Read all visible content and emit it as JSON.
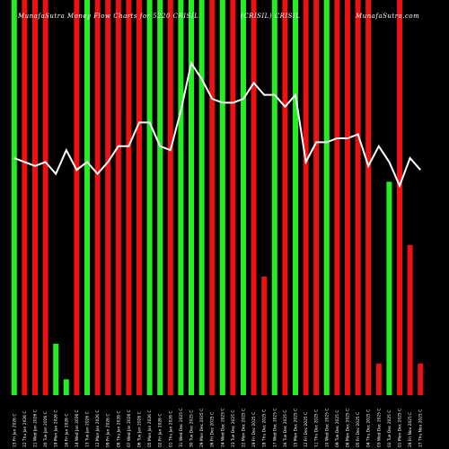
{
  "header": {
    "left": "MunafaSutra Money Flow Charts for 5220 CRISIL",
    "center": "(CRISIL) CRISIL",
    "right": "MunafaSutra.com"
  },
  "chart_data": {
    "type": "bar",
    "title": "MunafaSutra Money Flow Charts for 5220 CRISIL",
    "bars_normalized_to": "tallest = 1.0",
    "ylim": [
      0,
      1
    ],
    "line_series_scale": "price line, top of plot = 1.0",
    "categories": [
      "23 Fri Jan 2026 C",
      "22 Thu Jan 2026 C",
      "21 Wed Jan 2026 C",
      "20 Tue Jan 2026 C",
      "19 Mon Jan 2026 C",
      "16 Fri Jan 2026 C",
      "14 Wed Jan 2026 C",
      "13 Tue Jan 2026 C",
      "12 Mon Jan 2026 C",
      "09 Fri Jan 2026 C",
      "08 Thu Jan 2026 C",
      "07 Wed Jan 2026 C",
      "06 Tue Jan 2026 C",
      "05 Mon Jan 2026 C",
      "02 Fri Jan 2026 C",
      "01 Thu Jan 2026 C",
      "31 Wed Dec 2025 C",
      "30 Tue Dec 2025 C",
      "29 Mon Dec 2025 C",
      "26 Fri Dec 2025 C",
      "24 Wed Dec 2025 C",
      "23 Tue Dec 2025 C",
      "22 Mon Dec 2025 C",
      "19 Fri Dec 2025 C",
      "18 Thu Dec 2025 C",
      "17 Wed Dec 2025 C",
      "16 Tue Dec 2025 C",
      "15 Mon Dec 2025 C",
      "12 Fri Dec 2025 C",
      "11 Thu Dec 2025 C",
      "10 Wed Dec 2025 C",
      "09 Tue Dec 2025 C",
      "08 Mon Dec 2025 C",
      "05 Fri Dec 2025 C",
      "04 Thu Dec 2025 C",
      "03 Wed Dec 2025 C",
      "02 Tue Dec 2025 C",
      "01 Mon Dec 2025 C",
      "28 Fri Nov 2025 C",
      "27 Thu Nov 2025 C"
    ],
    "bars": [
      {
        "value": 1.0,
        "color": "green"
      },
      {
        "value": 1.0,
        "color": "red"
      },
      {
        "value": 1.0,
        "color": "red"
      },
      {
        "value": 1.0,
        "color": "red"
      },
      {
        "value": 0.13,
        "color": "green"
      },
      {
        "value": 0.04,
        "color": "green"
      },
      {
        "value": 1.0,
        "color": "red"
      },
      {
        "value": 1.0,
        "color": "green"
      },
      {
        "value": 1.0,
        "color": "red"
      },
      {
        "value": 1.0,
        "color": "red"
      },
      {
        "value": 1.0,
        "color": "red"
      },
      {
        "value": 1.0,
        "color": "red"
      },
      {
        "value": 1.0,
        "color": "red"
      },
      {
        "value": 1.0,
        "color": "green"
      },
      {
        "value": 1.0,
        "color": "green"
      },
      {
        "value": 1.0,
        "color": "red"
      },
      {
        "value": 1.0,
        "color": "green"
      },
      {
        "value": 1.0,
        "color": "green"
      },
      {
        "value": 1.0,
        "color": "green"
      },
      {
        "value": 1.0,
        "color": "red"
      },
      {
        "value": 1.0,
        "color": "green"
      },
      {
        "value": 1.0,
        "color": "red"
      },
      {
        "value": 1.0,
        "color": "green"
      },
      {
        "value": 1.0,
        "color": "red"
      },
      {
        "value": 0.3,
        "color": "red"
      },
      {
        "value": 1.0,
        "color": "green"
      },
      {
        "value": 1.0,
        "color": "red"
      },
      {
        "value": 1.0,
        "color": "green"
      },
      {
        "value": 1.0,
        "color": "red"
      },
      {
        "value": 1.0,
        "color": "red"
      },
      {
        "value": 1.0,
        "color": "green"
      },
      {
        "value": 1.0,
        "color": "red"
      },
      {
        "value": 1.0,
        "color": "red"
      },
      {
        "value": 1.0,
        "color": "red"
      },
      {
        "value": 1.0,
        "color": "red"
      },
      {
        "value": 0.08,
        "color": "red"
      },
      {
        "value": 0.54,
        "color": "green"
      },
      {
        "value": 1.0,
        "color": "red"
      },
      {
        "value": 0.38,
        "color": "red"
      },
      {
        "value": 0.08,
        "color": "red"
      }
    ],
    "line": [
      0.6,
      0.59,
      0.58,
      0.59,
      0.56,
      0.62,
      0.57,
      0.59,
      0.56,
      0.59,
      0.63,
      0.63,
      0.69,
      0.69,
      0.63,
      0.62,
      0.72,
      0.84,
      0.8,
      0.75,
      0.74,
      0.74,
      0.75,
      0.79,
      0.76,
      0.76,
      0.73,
      0.76,
      0.59,
      0.64,
      0.64,
      0.65,
      0.65,
      0.66,
      0.58,
      0.63,
      0.59,
      0.53,
      0.6,
      0.57
    ],
    "colors": {
      "green": "#22ee22",
      "red": "#ee1111",
      "line": "#ffffff",
      "background": "#000000"
    }
  }
}
